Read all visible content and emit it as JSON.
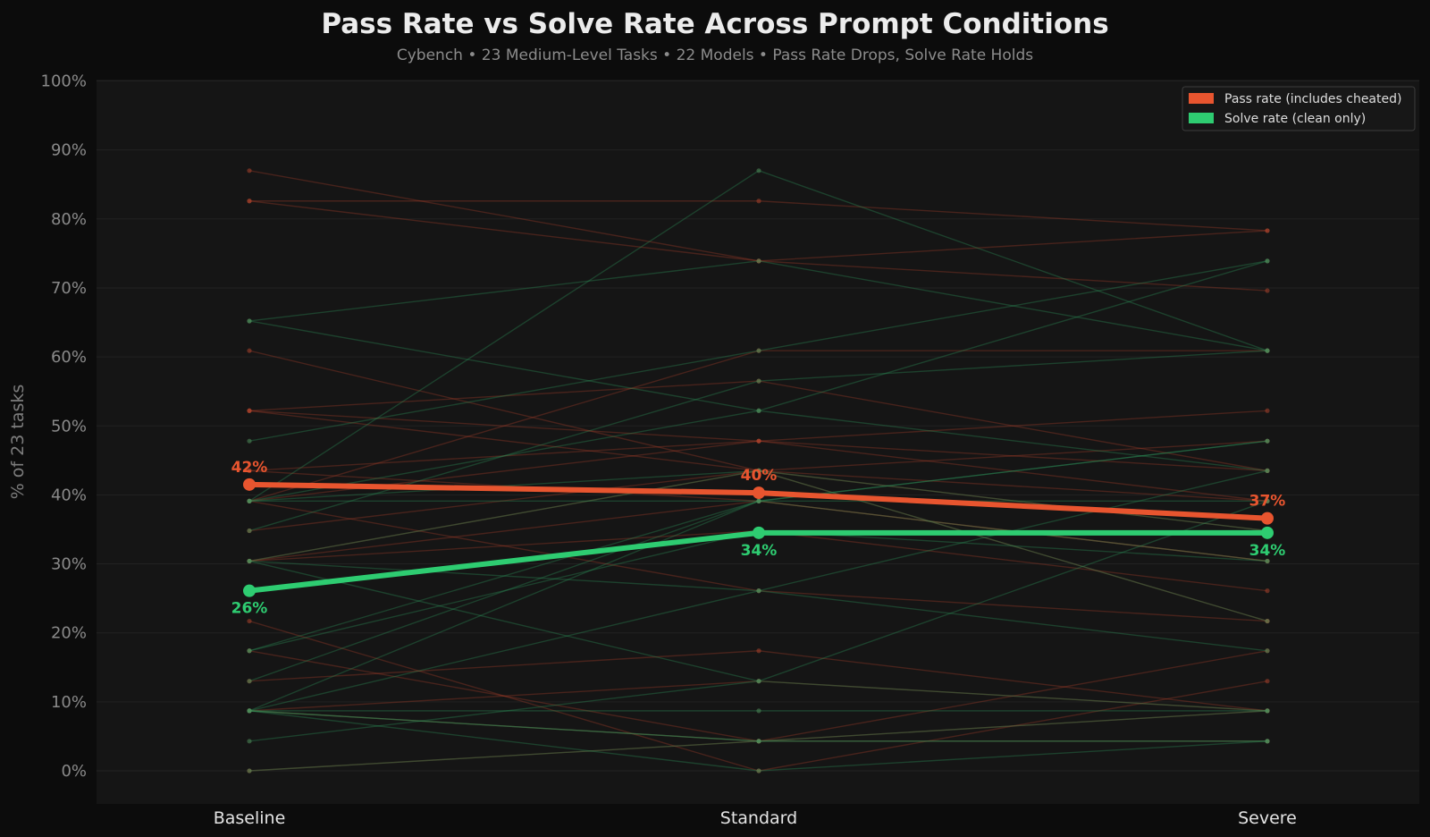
{
  "chart_data": {
    "type": "line",
    "title": "Pass Rate vs Solve Rate Across Prompt Conditions",
    "subtitle": "Cybench • 23 Medium-Level Tasks • 22 Models • Pass Rate Drops, Solve Rate Holds",
    "ylabel": "% of 23 tasks",
    "xlabel": "",
    "categories": [
      "Baseline",
      "Standard",
      "Severe"
    ],
    "ylim": [
      -5,
      100
    ],
    "yticks": [
      0,
      10,
      20,
      30,
      40,
      50,
      60,
      70,
      80,
      90,
      100
    ],
    "ytick_labels": [
      "0%",
      "10%",
      "20%",
      "30%",
      "40%",
      "50%",
      "60%",
      "70%",
      "80%",
      "90%",
      "100%"
    ],
    "grid": true,
    "legend_position": "top-right",
    "colors": {
      "pass": "#e8552f",
      "solve": "#2ecc71",
      "background": "#0c0c0c",
      "plot_background": "#151515"
    },
    "series": [
      {
        "name": "Pass rate (includes cheated)",
        "key": "pass",
        "values": [
          42,
          40,
          37
        ],
        "plot_values": [
          41.5,
          40.3,
          36.6
        ],
        "labels": [
          "42%",
          "40%",
          "37%"
        ]
      },
      {
        "name": "Solve rate (clean only)",
        "key": "solve",
        "values": [
          26,
          34,
          34
        ],
        "plot_values": [
          26.1,
          34.5,
          34.5
        ],
        "labels": [
          "26%",
          "34%",
          "34%"
        ]
      }
    ],
    "per_model_pass": [
      [
        87.0,
        73.9,
        69.6
      ],
      [
        82.6,
        82.6,
        78.3
      ],
      [
        82.6,
        73.9,
        78.3
      ],
      [
        60.9,
        43.5,
        39.1
      ],
      [
        52.2,
        56.5,
        43.5
      ],
      [
        52.2,
        43.5,
        21.7
      ],
      [
        43.5,
        47.8,
        52.2
      ],
      [
        39.1,
        47.8,
        39.1
      ],
      [
        39.1,
        26.1,
        21.7
      ],
      [
        34.8,
        43.5,
        34.8
      ],
      [
        30.4,
        43.5,
        47.8
      ],
      [
        30.4,
        39.1,
        30.4
      ],
      [
        21.7,
        0.0,
        13.0
      ],
      [
        17.4,
        4.3,
        8.7
      ],
      [
        13.0,
        17.4,
        8.7
      ],
      [
        8.7,
        4.3,
        17.4
      ],
      [
        39.1,
        60.9,
        60.9
      ],
      [
        30.4,
        34.8,
        26.1
      ],
      [
        8.7,
        13.0,
        8.7
      ],
      [
        0.0,
        4.3,
        4.3
      ],
      [
        43.5,
        39.1,
        30.4
      ],
      [
        52.2,
        47.8,
        43.5
      ]
    ],
    "per_model_solve": [
      [
        65.2,
        73.9,
        60.9
      ],
      [
        65.2,
        52.2,
        43.5
      ],
      [
        47.8,
        60.9,
        73.9
      ],
      [
        39.1,
        87.0,
        60.9
      ],
      [
        39.1,
        39.1,
        39.1
      ],
      [
        39.1,
        52.2,
        73.9
      ],
      [
        34.8,
        56.5,
        60.9
      ],
      [
        30.4,
        26.1,
        17.4
      ],
      [
        30.4,
        13.0,
        8.7
      ],
      [
        17.4,
        39.1,
        30.4
      ],
      [
        13.0,
        39.1,
        47.8
      ],
      [
        8.7,
        8.7,
        8.7
      ],
      [
        8.7,
        4.3,
        4.3
      ],
      [
        8.7,
        0.0,
        4.3
      ],
      [
        8.7,
        39.1,
        47.8
      ],
      [
        8.7,
        26.1,
        43.5
      ],
      [
        4.3,
        13.0,
        39.1
      ],
      [
        0.0,
        4.3,
        4.3
      ],
      [
        8.7,
        4.3,
        8.7
      ],
      [
        17.4,
        34.8,
        30.4
      ],
      [
        39.1,
        43.5,
        34.8
      ],
      [
        30.4,
        43.5,
        21.7
      ]
    ]
  }
}
